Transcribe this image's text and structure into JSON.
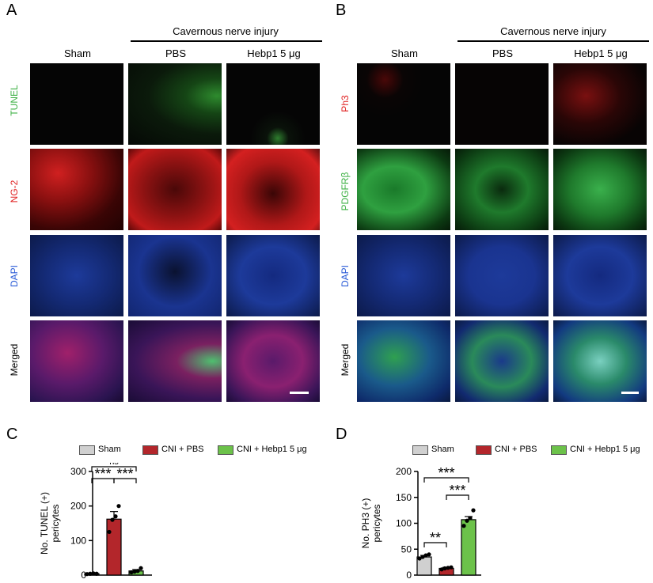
{
  "panels": {
    "A": {
      "letter": "A",
      "group_header": "Cavernous nerve injury",
      "columns": [
        "Sham",
        "PBS",
        "Hebp1 5 μg"
      ],
      "rows": [
        {
          "label": "TUNEL",
          "color": "#3cb043"
        },
        {
          "label": "NG-2",
          "color": "#e02020"
        },
        {
          "label": "DAPI",
          "color": "#2a5bd7"
        },
        {
          "label": "Merged",
          "color": "#000000"
        }
      ]
    },
    "B": {
      "letter": "B",
      "group_header": "Cavernous nerve injury",
      "columns": [
        "Sham",
        "PBS",
        "Hebp1 5 μg"
      ],
      "rows": [
        {
          "label": "Ph3",
          "color": "#e02020"
        },
        {
          "label": "PDGFRβ",
          "color": "#3cb043"
        },
        {
          "label": "DAPI",
          "color": "#2a5bd7"
        },
        {
          "label": "Merged",
          "color": "#000000"
        }
      ]
    },
    "C": {
      "letter": "C"
    },
    "D": {
      "letter": "D"
    }
  },
  "legend": {
    "items": [
      {
        "label": "Sham",
        "color": "#d0d0d0"
      },
      {
        "label": "CNI + PBS",
        "color": "#b3262b"
      },
      {
        "label": "CNI + Hebp1 5 μg",
        "color": "#6cc24a"
      }
    ]
  },
  "chart_data": [
    {
      "type": "bar",
      "categories": [
        "Sham",
        "CNI + PBS",
        "CNI + Hebp1 5 μg"
      ],
      "values": [
        4,
        162,
        12
      ],
      "errors": [
        1,
        22,
        4
      ],
      "points": [
        [
          3,
          4,
          5,
          4
        ],
        [
          125,
          160,
          170,
          200
        ],
        [
          8,
          10,
          12,
          20
        ]
      ],
      "colors": [
        "#d0d0d0",
        "#b3262b",
        "#6cc24a"
      ],
      "ylabel": "No. TUNEL (+) pericytes",
      "ylim": [
        0,
        300
      ],
      "yticks": [
        0,
        100,
        200,
        300
      ],
      "significance": [
        {
          "from": 0,
          "to": 1,
          "label": "***"
        },
        {
          "from": 1,
          "to": 2,
          "label": "***"
        },
        {
          "from": 0,
          "to": 2,
          "label": "ns"
        }
      ]
    },
    {
      "type": "bar",
      "categories": [
        "Sham",
        "CNI + PBS",
        "CNI + Hebp1 5 μg"
      ],
      "values": [
        35,
        13,
        107
      ],
      "errors": [
        3,
        2,
        6
      ],
      "points": [
        [
          32,
          35,
          38,
          40
        ],
        [
          11,
          13,
          14,
          15
        ],
        [
          95,
          105,
          110,
          125
        ]
      ],
      "colors": [
        "#d0d0d0",
        "#b3262b",
        "#6cc24a"
      ],
      "ylabel": "No. PH3 (+) pericytes",
      "ylim": [
        0,
        200
      ],
      "yticks": [
        0,
        50,
        100,
        150,
        200
      ],
      "significance": [
        {
          "from": 0,
          "to": 1,
          "label": "**"
        },
        {
          "from": 1,
          "to": 2,
          "label": "***"
        },
        {
          "from": 0,
          "to": 2,
          "label": "***"
        }
      ]
    }
  ]
}
